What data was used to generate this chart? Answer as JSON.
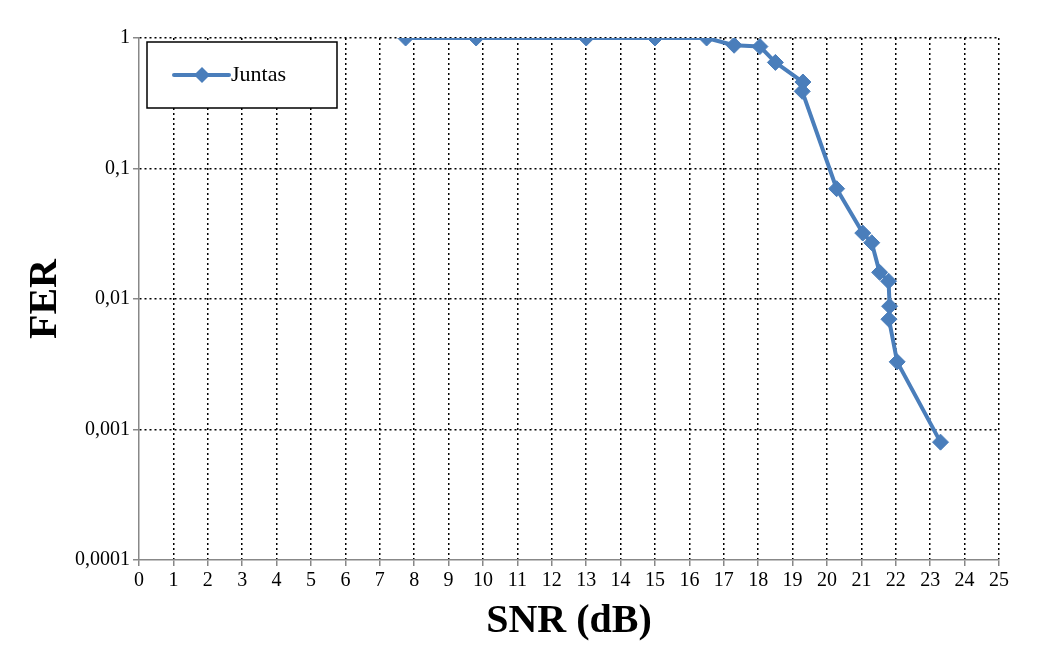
{
  "chart_data": {
    "type": "line",
    "xlabel": "SNR (dB)",
    "ylabel": "FER",
    "x": [
      7.75,
      9.8,
      13,
      15,
      16.5,
      17.3,
      18.05,
      18.5,
      19.3,
      19.28,
      20.28,
      21.04,
      21.3,
      21.53,
      21.79,
      21.82,
      21.8,
      22.04,
      23.3
    ],
    "series": [
      {
        "name": "Juntas",
        "color": "#4a7ebb",
        "values": [
          1,
          1,
          1,
          1,
          1,
          0.88,
          0.86,
          0.65,
          0.46,
          0.39,
          0.07,
          0.032,
          0.027,
          0.016,
          0.0137,
          0.0088,
          0.007,
          0.0033,
          0.0008
        ]
      }
    ],
    "log": "y",
    "xlim": [
      0,
      25
    ],
    "xticks": [
      0,
      1,
      2,
      3,
      4,
      5,
      6,
      7,
      8,
      9,
      10,
      11,
      12,
      13,
      14,
      15,
      16,
      17,
      18,
      19,
      20,
      21,
      22,
      23,
      24,
      25
    ],
    "ylim": [
      0.0001,
      1
    ],
    "yticks": [
      {
        "value": 0.0001,
        "label": "0,0001"
      },
      {
        "value": 0.001,
        "label": "0,001"
      },
      {
        "value": 0.01,
        "label": "0,01"
      },
      {
        "value": 0.1,
        "label": "0,1"
      },
      {
        "value": 1,
        "label": "1"
      }
    ],
    "grid": true,
    "legend": "top left",
    "marker": "diamond",
    "line_style": "solid"
  }
}
